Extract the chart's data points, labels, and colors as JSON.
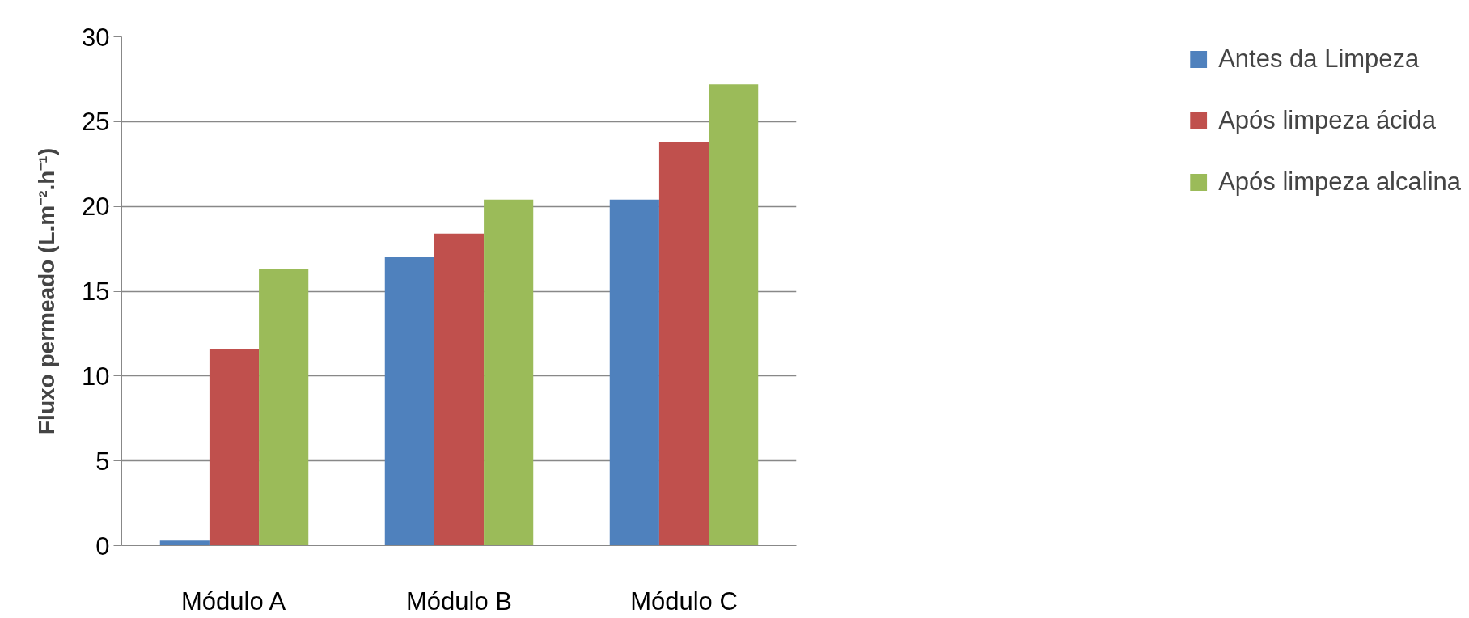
{
  "chart_data": {
    "type": "bar",
    "ylabel": "Fluxo permeado (L.m⁻².h⁻¹)",
    "categories": [
      "Módulo A",
      "Módulo B",
      "Módulo C"
    ],
    "series": [
      {
        "name": "Antes da Limpeza",
        "color": "#4f81bd",
        "values": [
          0.3,
          17.0,
          20.4
        ]
      },
      {
        "name": "Após limpeza ácida",
        "color": "#c0504d",
        "values": [
          11.6,
          18.4,
          23.8
        ]
      },
      {
        "name": "Após limpeza alcalina",
        "color": "#9bbb59",
        "values": [
          16.3,
          20.4,
          27.2
        ]
      }
    ],
    "ylim": [
      0,
      30
    ],
    "yticks": [
      0,
      5,
      10,
      15,
      20,
      25,
      30
    ],
    "grid": "y",
    "legend": "right"
  }
}
